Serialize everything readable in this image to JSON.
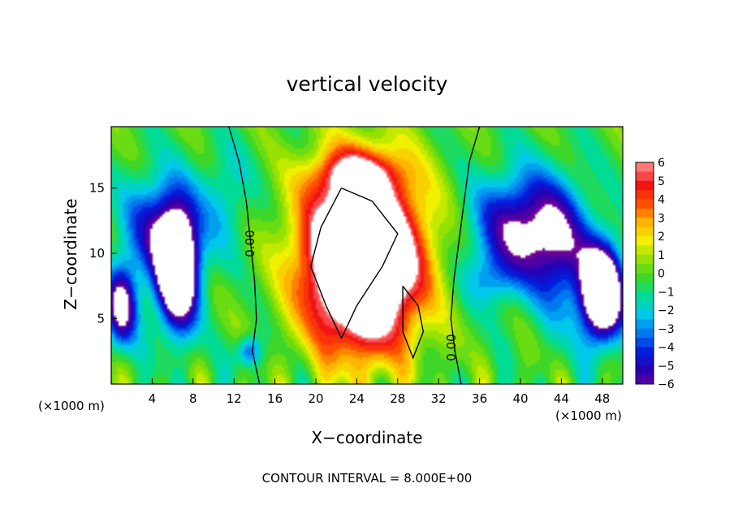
{
  "chart_data": {
    "type": "heatmap",
    "title": "vertical velocity",
    "xlabel": "X−coordinate",
    "ylabel": "Z−coordinate",
    "x_unit": "(×1000 m)",
    "z_unit": "(×1000 m)",
    "x_ticks": [
      4,
      8,
      12,
      16,
      20,
      24,
      28,
      32,
      36,
      40,
      44,
      48
    ],
    "z_ticks": [
      5,
      10,
      15
    ],
    "xlim": [
      0,
      50
    ],
    "zlim": [
      0,
      19.7
    ],
    "footer": "CONTOUR INTERVAL = 8.000E+00",
    "contour_labels": [
      "0.00",
      "0.00"
    ],
    "colorbar": {
      "ticks": [
        "6",
        "5",
        "4",
        "3",
        "2",
        "1",
        "0",
        "−1",
        "−2",
        "−3",
        "−4",
        "−5",
        "−6"
      ],
      "range": [
        -6,
        6
      ]
    },
    "features": [
      {
        "kind": "updraft",
        "x": 24,
        "z": 9,
        "peak": 6
      },
      {
        "kind": "downdraft",
        "x": 6,
        "z": 9,
        "peak": -6
      },
      {
        "kind": "downdraft",
        "x": 47,
        "z": 7,
        "peak": -6
      },
      {
        "kind": "downdraft",
        "x": 40,
        "z": 12,
        "peak": -5
      }
    ]
  }
}
